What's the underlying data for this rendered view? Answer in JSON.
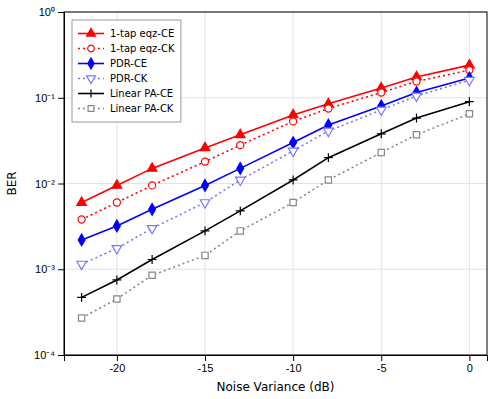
{
  "chart_data": {
    "type": "line",
    "xlabel": "Noise Variance (dB)",
    "ylabel": "BER",
    "log": "y",
    "grid": true,
    "legend": "upper left",
    "xlim": [
      -23,
      1
    ],
    "ylim": [
      0.0001,
      1
    ],
    "xticks": [
      -20,
      -15,
      -10,
      -5,
      0
    ],
    "yticks": [
      {
        "value": 0.0001,
        "label": "10⁻⁴"
      },
      {
        "value": 0.001,
        "label": "10⁻³"
      },
      {
        "value": 0.01,
        "label": "10⁻²"
      },
      {
        "value": 0.1,
        "label": "10⁻¹"
      },
      {
        "value": 1,
        "label": "10⁰"
      }
    ],
    "x": [
      -22,
      -20,
      -18,
      -15,
      -13,
      -10,
      -8,
      -5,
      -3,
      0
    ],
    "series": [
      {
        "name": "1-tap eqz-CE",
        "color": "#FF0000",
        "line_style": "solid",
        "marker": "triangle-up",
        "values": [
          0.006,
          0.0095,
          0.015,
          0.026,
          0.037,
          0.063,
          0.085,
          0.13,
          0.175,
          0.24
        ]
      },
      {
        "name": "1-tap eqz-CK",
        "color": "#FF0000",
        "line_style": "dotted",
        "marker": "circle-open",
        "values": [
          0.0038,
          0.006,
          0.0095,
          0.018,
          0.028,
          0.053,
          0.075,
          0.115,
          0.155,
          0.21
        ]
      },
      {
        "name": "PDR-CE",
        "color": "#0000FF",
        "line_style": "solid",
        "marker": "diamond",
        "values": [
          0.0022,
          0.0032,
          0.005,
          0.0095,
          0.015,
          0.03,
          0.048,
          0.08,
          0.115,
          0.17
        ]
      },
      {
        "name": "PDR-CK",
        "color": "#7777FF",
        "line_style": "dotted",
        "marker": "triangle-down-open",
        "values": [
          0.00115,
          0.00175,
          0.003,
          0.006,
          0.011,
          0.024,
          0.041,
          0.072,
          0.105,
          0.16
        ]
      },
      {
        "name": "Linear PA-CE",
        "color": "#000000",
        "line_style": "solid",
        "marker": "plus",
        "values": [
          0.00047,
          0.00075,
          0.0013,
          0.0028,
          0.0048,
          0.011,
          0.02,
          0.038,
          0.058,
          0.09
        ]
      },
      {
        "name": "Linear PA-CK",
        "color": "#888888",
        "line_style": "dotted",
        "marker": "square-open",
        "values": [
          0.00027,
          0.00045,
          0.00085,
          0.00145,
          0.0028,
          0.006,
          0.011,
          0.023,
          0.037,
          0.065
        ]
      }
    ]
  }
}
